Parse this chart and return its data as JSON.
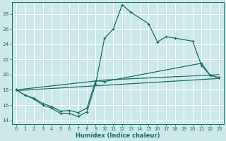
{
  "xlabel": "Humidex (Indice chaleur)",
  "bg_color": "#cce8e8",
  "grid_color": "#b8d8d8",
  "line_color": "#1a6e68",
  "xlim": [
    -0.5,
    23.5
  ],
  "ylim": [
    13.5,
    29.5
  ],
  "yticks": [
    14,
    16,
    18,
    20,
    22,
    24,
    26,
    28
  ],
  "xticks": [
    0,
    1,
    2,
    3,
    4,
    5,
    6,
    7,
    8,
    9,
    10,
    11,
    12,
    13,
    14,
    15,
    16,
    17,
    18,
    19,
    20,
    21,
    22,
    23
  ],
  "line1_x": [
    0,
    1,
    2,
    3,
    4,
    5,
    6,
    7,
    8,
    9,
    10,
    11,
    12,
    13,
    15,
    16,
    17,
    18,
    20,
    21,
    22,
    23
  ],
  "line1_y": [
    18.0,
    17.3,
    16.8,
    16.0,
    15.6,
    14.9,
    14.9,
    14.5,
    15.1,
    18.8,
    24.8,
    26.0,
    29.2,
    28.2,
    26.7,
    24.3,
    25.0,
    24.8,
    24.4,
    21.2,
    19.9,
    19.6
  ],
  "line2_x": [
    0,
    1,
    2,
    3,
    4,
    5,
    6,
    7,
    8,
    9,
    10,
    21,
    22,
    23
  ],
  "line2_y": [
    18.0,
    17.3,
    16.9,
    16.2,
    15.8,
    15.2,
    15.3,
    15.0,
    15.6,
    19.2,
    19.1,
    21.5,
    19.9,
    19.6
  ],
  "line3_x": [
    0,
    10,
    23
  ],
  "line3_y": [
    18.0,
    19.3,
    20.0
  ],
  "line4_x": [
    0,
    10,
    23
  ],
  "line4_y": [
    17.9,
    18.6,
    19.5
  ]
}
